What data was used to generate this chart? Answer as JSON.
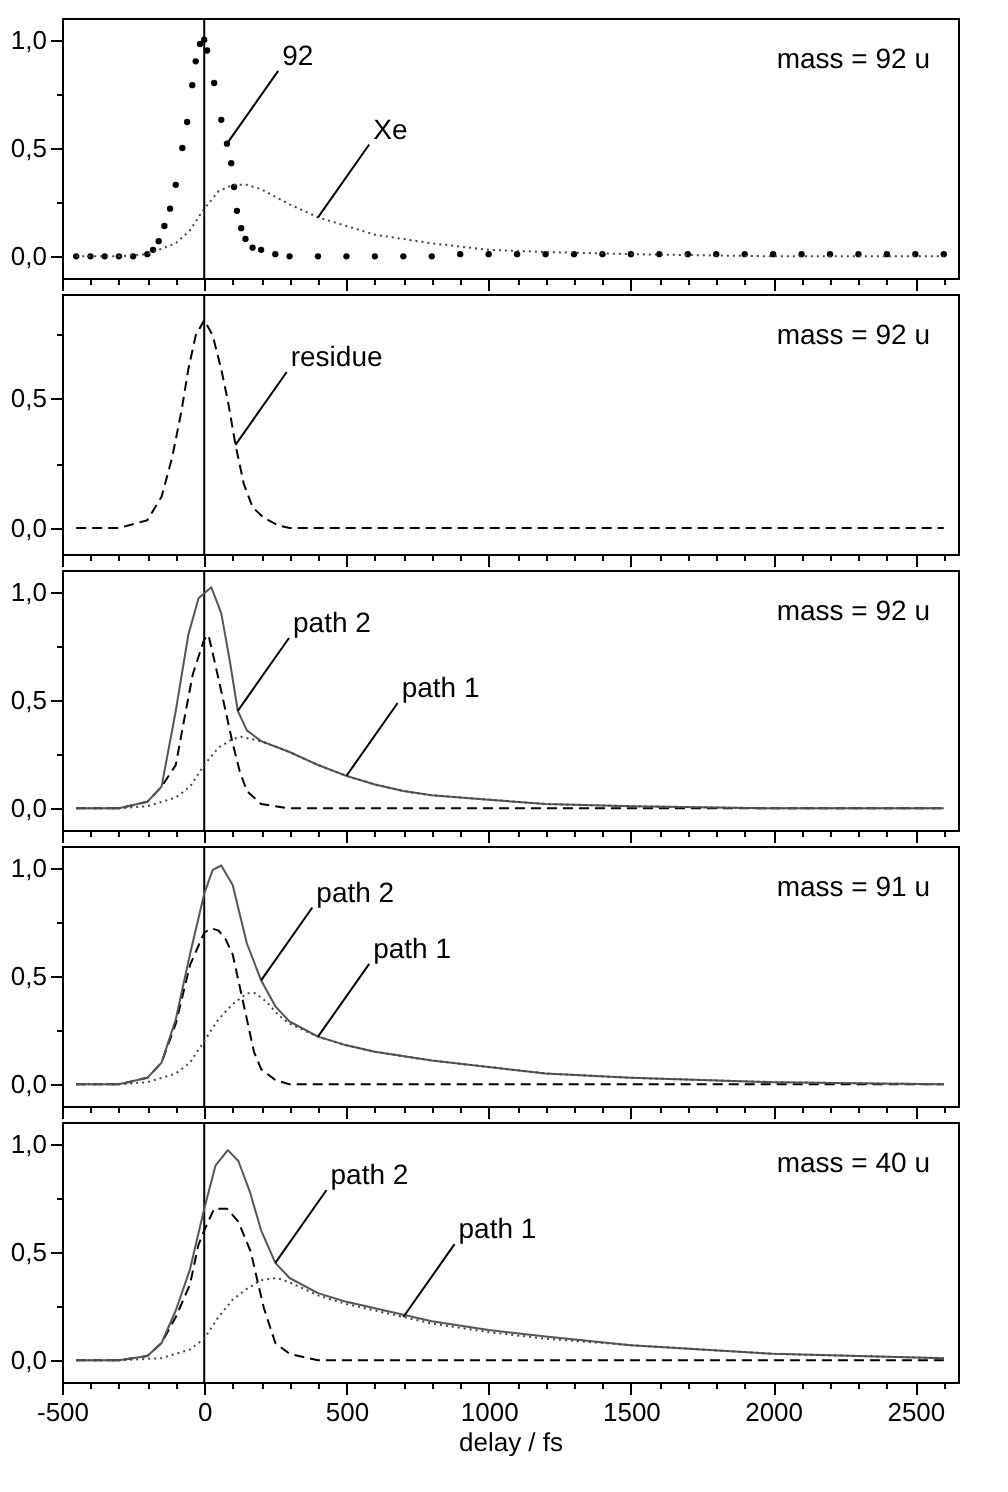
{
  "chart_data": [
    {
      "type": "line",
      "annotations": [
        "mass = 92 u"
      ],
      "xlim": [
        -500,
        2650
      ],
      "ylim": [
        -0.1,
        1.1
      ],
      "tick_labels": "y",
      "xticks": [
        -500,
        {
          "value": -400,
          "label": null
        },
        {
          "value": -300,
          "label": null
        },
        {
          "value": -200,
          "label": null
        },
        {
          "value": -100,
          "label": null
        },
        0,
        {
          "value": 100,
          "label": null
        },
        {
          "value": 200,
          "label": null
        },
        {
          "value": 300,
          "label": null
        },
        {
          "value": 400,
          "label": null
        },
        500,
        {
          "value": 600,
          "label": null
        },
        {
          "value": 700,
          "label": null
        },
        {
          "value": 800,
          "label": null
        },
        {
          "value": 900,
          "label": null
        },
        1000,
        {
          "value": 1100,
          "label": null
        },
        {
          "value": 1200,
          "label": null
        },
        {
          "value": 1300,
          "label": null
        },
        {
          "value": 1400,
          "label": null
        },
        1500,
        {
          "value": 1600,
          "label": null
        },
        {
          "value": 1700,
          "label": null
        },
        {
          "value": 1800,
          "label": null
        },
        {
          "value": 1900,
          "label": null
        },
        2000,
        {
          "value": 2100,
          "label": null
        },
        {
          "value": 2200,
          "label": null
        },
        {
          "value": 2300,
          "label": null
        },
        {
          "value": 2400,
          "label": null
        },
        2500,
        {
          "value": 2600,
          "label": null
        }
      ],
      "yticks": [
        {
          "value": 0,
          "label": "0,0"
        },
        {
          "value": 0.25,
          "label": null
        },
        {
          "value": 0.5,
          "label": "0,5"
        },
        {
          "value": 0.75,
          "label": null
        },
        {
          "value": 1,
          "label": "1,0"
        }
      ],
      "ref_lines": [
        {
          "axis": "x",
          "value": 0,
          "color": "#000000"
        }
      ],
      "series": [
        {
          "name": "92",
          "type": "scatter",
          "marker": "circle",
          "color": "#000000",
          "x": [
            -450,
            -400,
            -350,
            -300,
            -250,
            -200,
            -180,
            -160,
            -140,
            -120,
            -100,
            -77,
            -60,
            -42,
            -30,
            -15,
            0,
            10,
            35,
            60,
            80,
            95,
            105,
            115,
            130,
            145,
            170,
            200,
            250,
            300,
            400,
            500,
            600,
            700,
            800,
            900,
            1000,
            1100,
            1200,
            1300,
            1400,
            1500,
            1600,
            1700,
            1800,
            1900,
            2000,
            2100,
            2200,
            2300,
            2400,
            2500,
            2600
          ],
          "values": [
            0,
            0,
            0,
            0,
            0,
            0.01,
            0.03,
            0.07,
            0.14,
            0.22,
            0.33,
            0.5,
            0.62,
            0.79,
            0.9,
            0.98,
            1.0,
            0.95,
            0.8,
            0.63,
            0.52,
            0.43,
            0.32,
            0.21,
            0.13,
            0.08,
            0.04,
            0.03,
            0.01,
            0,
            0,
            0,
            0,
            0,
            0,
            0.01,
            0.01,
            0.01,
            0.01,
            0.01,
            0.01,
            0.01,
            0.01,
            0.01,
            0.01,
            0.01,
            0.01,
            0.01,
            0.01,
            0.01,
            0.01,
            0.01,
            0.01
          ]
        },
        {
          "name": "Xe",
          "line_style": "dotted",
          "color": "#444444",
          "x": [
            -450,
            -300,
            -200,
            -100,
            -50,
            0,
            50,
            100,
            150,
            200,
            300,
            400,
            500,
            600,
            700,
            800,
            1000,
            1200,
            1500,
            2000,
            2600
          ],
          "values": [
            0,
            0,
            0.01,
            0.06,
            0.12,
            0.22,
            0.3,
            0.33,
            0.33,
            0.31,
            0.24,
            0.18,
            0.14,
            0.1,
            0.08,
            0.06,
            0.03,
            0.02,
            0.01,
            0,
            0
          ]
        }
      ]
    },
    {
      "type": "line",
      "annotations": [
        "mass = 92 u"
      ],
      "xlim": [
        -500,
        2650
      ],
      "ylim": [
        -0.1,
        0.9
      ],
      "tick_labels": "y",
      "xticks": [
        -500,
        {
          "value": -400,
          "label": null
        },
        {
          "value": -300,
          "label": null
        },
        {
          "value": -200,
          "label": null
        },
        {
          "value": -100,
          "label": null
        },
        0,
        {
          "value": 100,
          "label": null
        },
        {
          "value": 200,
          "label": null
        },
        {
          "value": 300,
          "label": null
        },
        {
          "value": 400,
          "label": null
        },
        500,
        {
          "value": 600,
          "label": null
        },
        {
          "value": 700,
          "label": null
        },
        {
          "value": 800,
          "label": null
        },
        {
          "value": 900,
          "label": null
        },
        1000,
        {
          "value": 1100,
          "label": null
        },
        {
          "value": 1200,
          "label": null
        },
        {
          "value": 1300,
          "label": null
        },
        {
          "value": 1400,
          "label": null
        },
        1500,
        {
          "value": 1600,
          "label": null
        },
        {
          "value": 1700,
          "label": null
        },
        {
          "value": 1800,
          "label": null
        },
        {
          "value": 1900,
          "label": null
        },
        2000,
        {
          "value": 2100,
          "label": null
        },
        {
          "value": 2200,
          "label": null
        },
        {
          "value": 2300,
          "label": null
        },
        {
          "value": 2400,
          "label": null
        },
        2500,
        {
          "value": 2600,
          "label": null
        }
      ],
      "yticks": [
        {
          "value": 0,
          "label": "0,0"
        },
        {
          "value": 0.25,
          "label": null
        },
        {
          "value": 0.5,
          "label": "0,5"
        },
        {
          "value": 0.75,
          "label": null
        }
      ],
      "ref_lines": [
        {
          "axis": "x",
          "value": 0,
          "color": "#000000"
        }
      ],
      "series": [
        {
          "name": "residue",
          "line_style": "dashed",
          "color": "#000000",
          "x": [
            -450,
            -300,
            -200,
            -150,
            -113,
            -80,
            -56,
            -30,
            0,
            30,
            60,
            83,
            110,
            139,
            170,
            208,
            260,
            300,
            500,
            1000,
            2600
          ],
          "values": [
            0,
            0,
            0.03,
            0.12,
            0.27,
            0.45,
            0.61,
            0.74,
            0.8,
            0.74,
            0.61,
            0.49,
            0.32,
            0.17,
            0.08,
            0.04,
            0.01,
            0,
            0,
            0,
            0
          ]
        }
      ]
    },
    {
      "type": "line",
      "annotations": [
        "mass = 92 u"
      ],
      "xlim": [
        -500,
        2650
      ],
      "ylim": [
        -0.1,
        1.1
      ],
      "tick_labels": "y",
      "xticks": [
        -500,
        {
          "value": -400,
          "label": null
        },
        {
          "value": -300,
          "label": null
        },
        {
          "value": -200,
          "label": null
        },
        {
          "value": -100,
          "label": null
        },
        0,
        {
          "value": 100,
          "label": null
        },
        {
          "value": 200,
          "label": null
        },
        {
          "value": 300,
          "label": null
        },
        {
          "value": 400,
          "label": null
        },
        500,
        {
          "value": 600,
          "label": null
        },
        {
          "value": 700,
          "label": null
        },
        {
          "value": 800,
          "label": null
        },
        {
          "value": 900,
          "label": null
        },
        1000,
        {
          "value": 1100,
          "label": null
        },
        {
          "value": 1200,
          "label": null
        },
        {
          "value": 1300,
          "label": null
        },
        {
          "value": 1400,
          "label": null
        },
        1500,
        {
          "value": 1600,
          "label": null
        },
        {
          "value": 1700,
          "label": null
        },
        {
          "value": 1800,
          "label": null
        },
        {
          "value": 1900,
          "label": null
        },
        2000,
        {
          "value": 2100,
          "label": null
        },
        {
          "value": 2200,
          "label": null
        },
        {
          "value": 2300,
          "label": null
        },
        {
          "value": 2400,
          "label": null
        },
        2500,
        {
          "value": 2600,
          "label": null
        }
      ],
      "yticks": [
        {
          "value": 0,
          "label": "0,0"
        },
        {
          "value": 0.25,
          "label": null
        },
        {
          "value": 0.5,
          "label": "0,5"
        },
        {
          "value": 0.75,
          "label": null
        },
        {
          "value": 1,
          "label": "1,0"
        }
      ],
      "ref_lines": [
        {
          "axis": "x",
          "value": 0,
          "color": "#000000"
        }
      ],
      "series": [
        {
          "line_style": "dashed",
          "color": "#000000",
          "x": [
            -450,
            -300,
            -200,
            -150,
            -100,
            -69,
            -40,
            0,
            15,
            50,
            75,
            100,
            125,
            150,
            200,
            250,
            300,
            1000,
            2600
          ],
          "values": [
            0,
            0,
            0.03,
            0.1,
            0.2,
            0.42,
            0.62,
            0.78,
            0.8,
            0.6,
            0.45,
            0.3,
            0.17,
            0.08,
            0.02,
            0.01,
            0,
            0,
            0
          ]
        },
        {
          "name": "path 2",
          "line_style": "solid",
          "color": "#555555",
          "x": [
            -450,
            -300,
            -200,
            -150,
            -100,
            -56,
            -20,
            25,
            60,
            90,
            118,
            150,
            200,
            300,
            400,
            500,
            600,
            700,
            800,
            1000,
            1200,
            1500,
            2000,
            2600
          ],
          "values": [
            0,
            0,
            0.03,
            0.1,
            0.45,
            0.8,
            0.97,
            1.02,
            0.9,
            0.68,
            0.45,
            0.36,
            0.31,
            0.26,
            0.2,
            0.15,
            0.11,
            0.08,
            0.06,
            0.04,
            0.02,
            0.01,
            0,
            0
          ]
        },
        {
          "name": "path 1",
          "line_style": "dotted",
          "color": "#444444",
          "x": [
            -450,
            -300,
            -200,
            -100,
            -50,
            0,
            50,
            100,
            130,
            200,
            300,
            400,
            500,
            600,
            700,
            800,
            1000,
            1200,
            1500,
            2000,
            2600
          ],
          "values": [
            0,
            0,
            0.01,
            0.05,
            0.1,
            0.2,
            0.28,
            0.32,
            0.33,
            0.31,
            0.26,
            0.2,
            0.15,
            0.11,
            0.08,
            0.06,
            0.04,
            0.02,
            0.01,
            0,
            0
          ]
        }
      ]
    },
    {
      "type": "line",
      "annotations": [
        "mass = 91 u"
      ],
      "xlim": [
        -500,
        2650
      ],
      "ylim": [
        -0.1,
        1.1
      ],
      "tick_labels": "y",
      "xticks": [
        -500,
        {
          "value": -400,
          "label": null
        },
        {
          "value": -300,
          "label": null
        },
        {
          "value": -200,
          "label": null
        },
        {
          "value": -100,
          "label": null
        },
        0,
        {
          "value": 100,
          "label": null
        },
        {
          "value": 200,
          "label": null
        },
        {
          "value": 300,
          "label": null
        },
        {
          "value": 400,
          "label": null
        },
        500,
        {
          "value": 600,
          "label": null
        },
        {
          "value": 700,
          "label": null
        },
        {
          "value": 800,
          "label": null
        },
        {
          "value": 900,
          "label": null
        },
        1000,
        {
          "value": 1100,
          "label": null
        },
        {
          "value": 1200,
          "label": null
        },
        {
          "value": 1300,
          "label": null
        },
        {
          "value": 1400,
          "label": null
        },
        1500,
        {
          "value": 1600,
          "label": null
        },
        {
          "value": 1700,
          "label": null
        },
        {
          "value": 1800,
          "label": null
        },
        {
          "value": 1900,
          "label": null
        },
        2000,
        {
          "value": 2100,
          "label": null
        },
        {
          "value": 2200,
          "label": null
        },
        {
          "value": 2300,
          "label": null
        },
        {
          "value": 2400,
          "label": null
        },
        2500,
        {
          "value": 2600,
          "label": null
        }
      ],
      "yticks": [
        {
          "value": 0,
          "label": "0,0"
        },
        {
          "value": 0.25,
          "label": null
        },
        {
          "value": 0.5,
          "label": "0,5"
        },
        {
          "value": 0.75,
          "label": null
        },
        {
          "value": 1,
          "label": "1,0"
        }
      ],
      "ref_lines": [
        {
          "axis": "x",
          "value": 0,
          "color": "#000000"
        }
      ],
      "series": [
        {
          "line_style": "dashed",
          "color": "#000000",
          "x": [
            -450,
            -300,
            -200,
            -150,
            -100,
            -50,
            0,
            25,
            50,
            75,
            100,
            125,
            150,
            175,
            200,
            250,
            300,
            1000,
            2600
          ],
          "values": [
            0,
            0,
            0.03,
            0.1,
            0.28,
            0.55,
            0.7,
            0.72,
            0.71,
            0.67,
            0.6,
            0.45,
            0.3,
            0.15,
            0.07,
            0.02,
            0,
            0,
            0
          ]
        },
        {
          "name": "path 2",
          "line_style": "solid",
          "color": "#555555",
          "x": [
            -450,
            -300,
            -200,
            -150,
            -100,
            -50,
            0,
            30,
            60,
            100,
            150,
            200,
            250,
            300,
            400,
            500,
            600,
            800,
            1000,
            1200,
            1500,
            2000,
            2600
          ],
          "values": [
            0,
            0,
            0.03,
            0.1,
            0.3,
            0.6,
            0.88,
            0.99,
            1.01,
            0.92,
            0.65,
            0.48,
            0.36,
            0.29,
            0.22,
            0.18,
            0.15,
            0.11,
            0.08,
            0.05,
            0.03,
            0.01,
            0
          ]
        },
        {
          "name": "path 1",
          "line_style": "dotted",
          "color": "#444444",
          "x": [
            -450,
            -300,
            -200,
            -100,
            -50,
            0,
            50,
            100,
            150,
            180,
            220,
            260,
            300,
            400,
            500,
            600,
            800,
            1000,
            1200,
            1500,
            2000,
            2600
          ],
          "values": [
            0,
            0,
            0.01,
            0.05,
            0.1,
            0.2,
            0.3,
            0.37,
            0.42,
            0.42,
            0.38,
            0.32,
            0.28,
            0.22,
            0.18,
            0.15,
            0.11,
            0.08,
            0.05,
            0.03,
            0.01,
            0
          ]
        }
      ]
    },
    {
      "type": "line",
      "annotations": [
        "mass = 40 u"
      ],
      "xlabel": "delay / fs",
      "xlim": [
        -500,
        2650
      ],
      "ylim": [
        -0.1,
        1.1
      ],
      "xticks": [
        -500,
        {
          "value": -400,
          "label": null
        },
        {
          "value": -300,
          "label": null
        },
        {
          "value": -200,
          "label": null
        },
        {
          "value": -100,
          "label": null
        },
        0,
        {
          "value": 100,
          "label": null
        },
        {
          "value": 200,
          "label": null
        },
        {
          "value": 300,
          "label": null
        },
        {
          "value": 400,
          "label": null
        },
        500,
        {
          "value": 600,
          "label": null
        },
        {
          "value": 700,
          "label": null
        },
        {
          "value": 800,
          "label": null
        },
        {
          "value": 900,
          "label": null
        },
        1000,
        {
          "value": 1100,
          "label": null
        },
        {
          "value": 1200,
          "label": null
        },
        {
          "value": 1300,
          "label": null
        },
        {
          "value": 1400,
          "label": null
        },
        1500,
        {
          "value": 1600,
          "label": null
        },
        {
          "value": 1700,
          "label": null
        },
        {
          "value": 1800,
          "label": null
        },
        {
          "value": 1900,
          "label": null
        },
        2000,
        {
          "value": 2100,
          "label": null
        },
        {
          "value": 2200,
          "label": null
        },
        {
          "value": 2300,
          "label": null
        },
        {
          "value": 2400,
          "label": null
        },
        2500,
        {
          "value": 2600,
          "label": null
        }
      ],
      "yticks": [
        {
          "value": 0,
          "label": "0,0"
        },
        {
          "value": 0.25,
          "label": null
        },
        {
          "value": 0.5,
          "label": "0,5"
        },
        {
          "value": 0.75,
          "label": null
        },
        {
          "value": 1,
          "label": "1,0"
        }
      ],
      "ref_lines": [
        {
          "axis": "x",
          "value": 0,
          "color": "#000000"
        }
      ],
      "series": [
        {
          "line_style": "dashed",
          "color": "#000000",
          "x": [
            -450,
            -300,
            -200,
            -150,
            -100,
            -50,
            -21,
            0,
            35,
            80,
            120,
            164,
            190,
            210,
            250,
            300,
            400,
            1000,
            2600
          ],
          "values": [
            0,
            0,
            0.02,
            0.08,
            0.2,
            0.35,
            0.53,
            0.6,
            0.7,
            0.7,
            0.64,
            0.5,
            0.35,
            0.24,
            0.08,
            0.03,
            0,
            0,
            0
          ]
        },
        {
          "name": "path 2",
          "line_style": "solid",
          "color": "#555555",
          "x": [
            -450,
            -300,
            -200,
            -150,
            -100,
            -50,
            0,
            40,
            83,
            120,
            160,
            200,
            250,
            300,
            400,
            500,
            600,
            700,
            800,
            1000,
            1200,
            1500,
            2000,
            2600
          ],
          "values": [
            0,
            0,
            0.02,
            0.08,
            0.23,
            0.42,
            0.7,
            0.9,
            0.97,
            0.92,
            0.78,
            0.6,
            0.45,
            0.38,
            0.31,
            0.27,
            0.24,
            0.21,
            0.18,
            0.14,
            0.11,
            0.07,
            0.03,
            0.01
          ]
        },
        {
          "name": "path 1",
          "line_style": "dotted",
          "color": "#444444",
          "x": [
            -450,
            -300,
            -150,
            -50,
            0,
            50,
            100,
            150,
            200,
            257,
            300,
            400,
            500,
            600,
            700,
            800,
            1000,
            1200,
            1500,
            2000,
            2600
          ],
          "values": [
            0,
            0,
            0.01,
            0.05,
            0.1,
            0.2,
            0.28,
            0.33,
            0.37,
            0.38,
            0.36,
            0.3,
            0.26,
            0.23,
            0.2,
            0.17,
            0.13,
            0.1,
            0.07,
            0.03,
            0.01
          ]
        }
      ]
    }
  ]
}
